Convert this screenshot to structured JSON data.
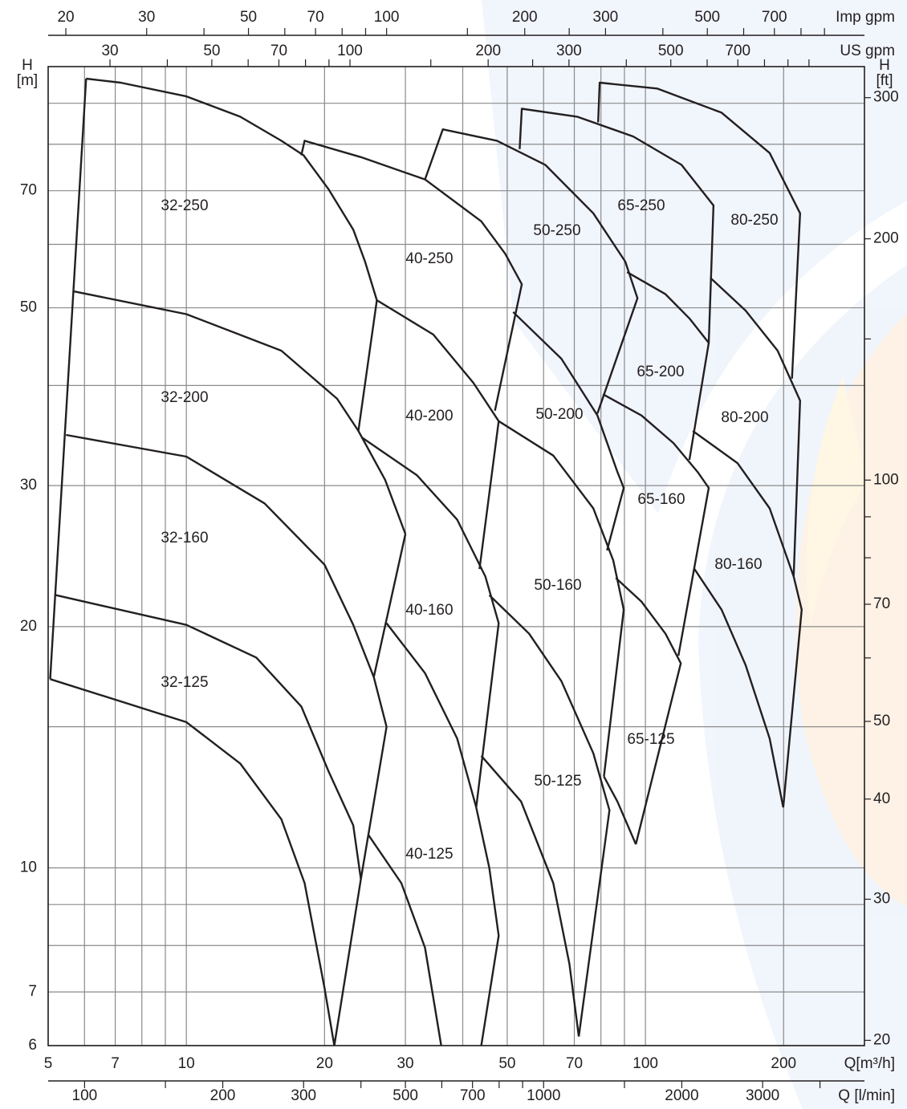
{
  "chart_data": {
    "type": "line",
    "x_label": "Q[m³/h]",
    "y_label": "H",
    "y_unit": "[m]",
    "y2_label": "H",
    "y2_unit": "[ft]",
    "xlog": true,
    "ylog": true,
    "grid": true,
    "color": "#231f20",
    "xlim": [
      5,
      300
    ],
    "xticks": [
      5,
      7,
      10,
      20,
      30,
      50,
      70,
      100,
      200
    ],
    "xminor": [
      6,
      8,
      9,
      40,
      60,
      80,
      90
    ],
    "ylim": [
      6,
      100
    ],
    "yticks": [
      6,
      7,
      10,
      20,
      30,
      50,
      70
    ],
    "yminor": [
      8,
      9,
      15,
      40,
      60,
      80,
      90
    ],
    "y2lim": [
      19.7,
      328
    ],
    "y2ticks": [
      20,
      30,
      40,
      50,
      70,
      100,
      200,
      300
    ],
    "y2minor": [
      60,
      80,
      90,
      150
    ],
    "top_axes": [
      {
        "label": "Imp gpm",
        "lim": [
          18.3,
          1100
        ],
        "ticks": [
          20,
          30,
          50,
          70,
          100,
          200,
          300,
          500,
          700
        ],
        "minor": [
          40,
          60,
          80,
          90,
          150,
          250,
          400,
          600,
          800,
          900
        ]
      },
      {
        "label": "US gpm",
        "lim": [
          22,
          1321
        ],
        "ticks": [
          30,
          50,
          70,
          100,
          200,
          300,
          500,
          700
        ],
        "minor": [
          40,
          60,
          80,
          90,
          150,
          250,
          400,
          600,
          800,
          900,
          1000
        ]
      }
    ],
    "bottom_axis2": {
      "label": "Q [l/min]",
      "lim": [
        83.3,
        5000
      ],
      "ticks": [
        100,
        200,
        300,
        500,
        700,
        1000,
        2000,
        3000
      ],
      "minor": [
        150,
        400,
        600,
        800,
        900,
        1500,
        4000
      ]
    },
    "labels": [
      "32-250",
      "40-250",
      "50-250",
      "65-250",
      "80-250",
      "32-200",
      "40-200",
      "50-200",
      "65-200",
      "80-200",
      "32-160",
      "40-160",
      "50-160",
      "65-160",
      "80-160",
      "32-125",
      "40-125",
      "50-125",
      "65-125"
    ],
    "curves": [
      {
        "x": [
          6.05,
          5.05
        ],
        "y": [
          96.6,
          17.2
        ]
      },
      {
        "x": [
          6.05,
          7.19,
          10,
          13.1,
          16.1,
          18.0,
          20.4,
          23.1,
          24.5,
          26.0
        ],
        "y": [
          96.6,
          95.5,
          91.8,
          86.6,
          80.8,
          77.5,
          70.3,
          62.6,
          57.1,
          51.1
        ]
      },
      {
        "x": [
          5.7,
          10,
          16.1,
          21.3,
          23.7,
          27.1,
          30
        ],
        "y": [
          52.4,
          49.1,
          44.2,
          38.5,
          35.1,
          30.5,
          26.1
        ]
      },
      {
        "x": [
          5.47,
          10,
          14.8,
          20.0,
          23.1,
          25.6,
          27.3
        ],
        "y": [
          34.7,
          32.6,
          28.5,
          23.9,
          20.1,
          17.3,
          15.0
        ]
      },
      {
        "x": [
          5.19,
          10,
          14.2,
          17.8,
          20.4,
          23.1,
          24.0
        ],
        "y": [
          21.9,
          20.1,
          18.3,
          15.9,
          13.2,
          11.3,
          9.68
        ]
      },
      {
        "x": [
          5.05,
          10,
          13.1,
          16.1,
          18.1,
          20.0,
          21.0
        ],
        "y": [
          17.2,
          15.2,
          13.5,
          11.5,
          9.57,
          7.08,
          6.0
        ]
      },
      {
        "x": [
          26.0,
          23.7
        ],
        "y": [
          51.1,
          35.1
        ]
      },
      {
        "x": [
          30,
          25.6
        ],
        "y": [
          26.1,
          17.3
        ]
      },
      {
        "x": [
          27.3,
          24.0,
          21.0
        ],
        "y": [
          15.0,
          9.68,
          6.0
        ]
      },
      {
        "x": [
          17.8,
          18.1,
          24.0,
          33.1,
          43.9,
          49.5,
          53.8,
          47.0
        ],
        "y": [
          77.5,
          80.8,
          77.1,
          72.3,
          64.1,
          58.4,
          53.5,
          37.2
        ]
      },
      {
        "x": [
          26.0,
          34.5,
          42.2,
          47.9,
          43.5
        ],
        "y": [
          51.1,
          46.3,
          40.3,
          36.1,
          23.6
        ]
      },
      {
        "x": [
          24.2,
          31.8,
          38.9,
          44.8,
          47.9,
          42.8
        ],
        "y": [
          34.4,
          30.9,
          27.2,
          23.1,
          20.2,
          11.9
        ]
      },
      {
        "x": [
          27.3,
          33.1,
          38.9,
          42.8,
          45.7,
          47.9,
          43.9
        ],
        "y": [
          20.2,
          17.5,
          14.5,
          11.9,
          10.0,
          8.23,
          6.0
        ]
      },
      {
        "x": [
          24.9,
          29.4,
          33.1,
          35.9
        ],
        "y": [
          11.0,
          9.57,
          7.95,
          6.0
        ]
      },
      {
        "x": [
          33.1,
          36.2,
          47.5,
          60.5,
          77.0,
          90.4,
          96.1,
          78.6
        ],
        "y": [
          72.3,
          83.5,
          80.8,
          75.4,
          65.6,
          57.1,
          51.4,
          36.9
        ]
      },
      {
        "x": [
          51.5,
          65.6,
          78.6,
          86.9,
          89.7,
          82.5
        ],
        "y": [
          49.4,
          43.2,
          36.7,
          31.2,
          29.8,
          24.9
        ]
      },
      {
        "x": [
          47.9,
          63.0,
          77.0,
          85.1,
          89.7,
          81.2
        ],
        "y": [
          36.1,
          32.7,
          28.1,
          24.2,
          21.0,
          13.0
        ]
      },
      {
        "x": [
          45.7,
          55.8,
          65.6,
          77.0,
          83.5,
          71.6
        ],
        "y": [
          21.9,
          19.6,
          17.1,
          13.9,
          11.8,
          6.16
        ]
      },
      {
        "x": [
          43.9,
          53.6,
          63.0,
          68.3,
          71.6
        ],
        "y": [
          13.8,
          12.1,
          9.57,
          7.59,
          6.16
        ]
      },
      {
        "x": [
          53.2,
          53.8,
          71,
          94.1,
          119.8,
          140.7,
          137.4
        ],
        "y": [
          78.9,
          88.6,
          86.6,
          81.8,
          75.4,
          67.1,
          45.2
        ]
      },
      {
        "x": [
          91.2,
          110.6,
          124.7,
          137.4,
          124.7
        ],
        "y": [
          55.4,
          52.0,
          48.5,
          45.2,
          32.3
        ]
      },
      {
        "x": [
          80.8,
          98.0,
          115.1,
          129.9,
          137.4,
          118
        ],
        "y": [
          39.0,
          36.7,
          33.9,
          31.2,
          29.8,
          18.4
        ]
      },
      {
        "x": [
          86.2,
          98.0,
          110.6,
          119.4,
          95.3
        ],
        "y": [
          23.0,
          21.5,
          19.6,
          18.0,
          10.7
        ]
      },
      {
        "x": [
          81.2,
          86.9,
          95.3
        ],
        "y": [
          13.0,
          12.1,
          10.7
        ]
      },
      {
        "x": [
          78.9,
          79.5,
          106,
          146.5,
          186.5,
          217.2,
          208.6
        ],
        "y": [
          85.2,
          95.5,
          93.9,
          87.6,
          78.0,
          65.6,
          40.8
        ]
      },
      {
        "x": [
          138.5,
          165.3,
          194.1,
          217.2,
          210.3
        ],
        "y": [
          54.5,
          49.6,
          44.2,
          38.3,
          23.1
        ]
      },
      {
        "x": [
          126.8,
          158.7,
          186.5,
          210.3,
          219,
          199.6
        ],
        "y": [
          35.1,
          32.0,
          28.1,
          23.1,
          21.0,
          11.9
        ]
      },
      {
        "x": [
          127.9,
          146.5,
          165.3,
          186.5,
          199.6
        ],
        "y": [
          23.6,
          21.0,
          17.9,
          14.5,
          11.9
        ]
      }
    ]
  }
}
